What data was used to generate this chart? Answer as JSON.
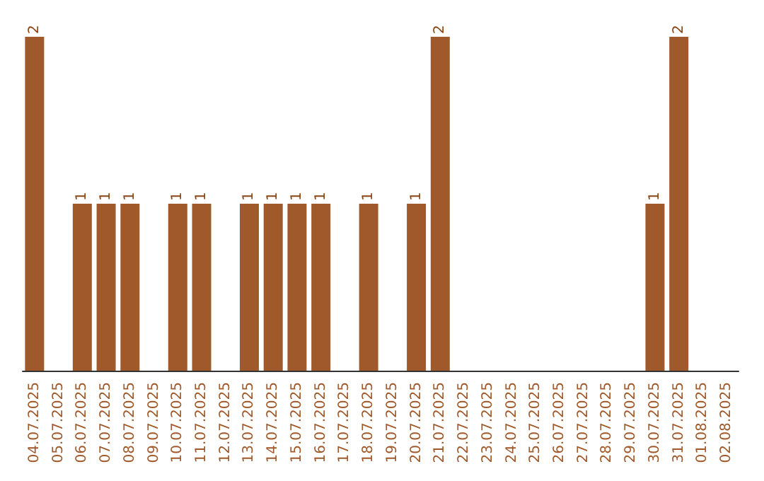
{
  "chart_data": {
    "type": "bar",
    "categories": [
      "04.07.2025",
      "05.07.2025",
      "06.07.2025",
      "07.07.2025",
      "08.07.2025",
      "09.07.2025",
      "10.07.2025",
      "11.07.2025",
      "12.07.2025",
      "13.07.2025",
      "14.07.2025",
      "15.07.2025",
      "16.07.2025",
      "17.07.2025",
      "18.07.2025",
      "19.07.2025",
      "20.07.2025",
      "21.07.2025",
      "22.07.2025",
      "23.07.2025",
      "24.07.2025",
      "25.07.2025",
      "26.07.2025",
      "27.07.2025",
      "28.07.2025",
      "29.07.2025",
      "30.07.2025",
      "31.07.2025",
      "01.08.2025",
      "02.08.2025"
    ],
    "values": [
      2,
      0,
      1,
      1,
      1,
      0,
      1,
      1,
      0,
      1,
      1,
      1,
      1,
      0,
      1,
      0,
      1,
      2,
      0,
      0,
      0,
      0,
      0,
      0,
      0,
      0,
      1,
      2,
      0,
      0
    ],
    "value_labels": [
      "2",
      null,
      "1",
      "1",
      "1",
      null,
      "1",
      "1",
      null,
      "1",
      "1",
      "1",
      "1",
      null,
      "1",
      null,
      "1",
      "2",
      null,
      null,
      null,
      null,
      null,
      null,
      null,
      null,
      "1",
      "2",
      null,
      null
    ],
    "color": "#a0592a",
    "ylim": [
      0,
      2
    ],
    "tick_labels": "x"
  }
}
